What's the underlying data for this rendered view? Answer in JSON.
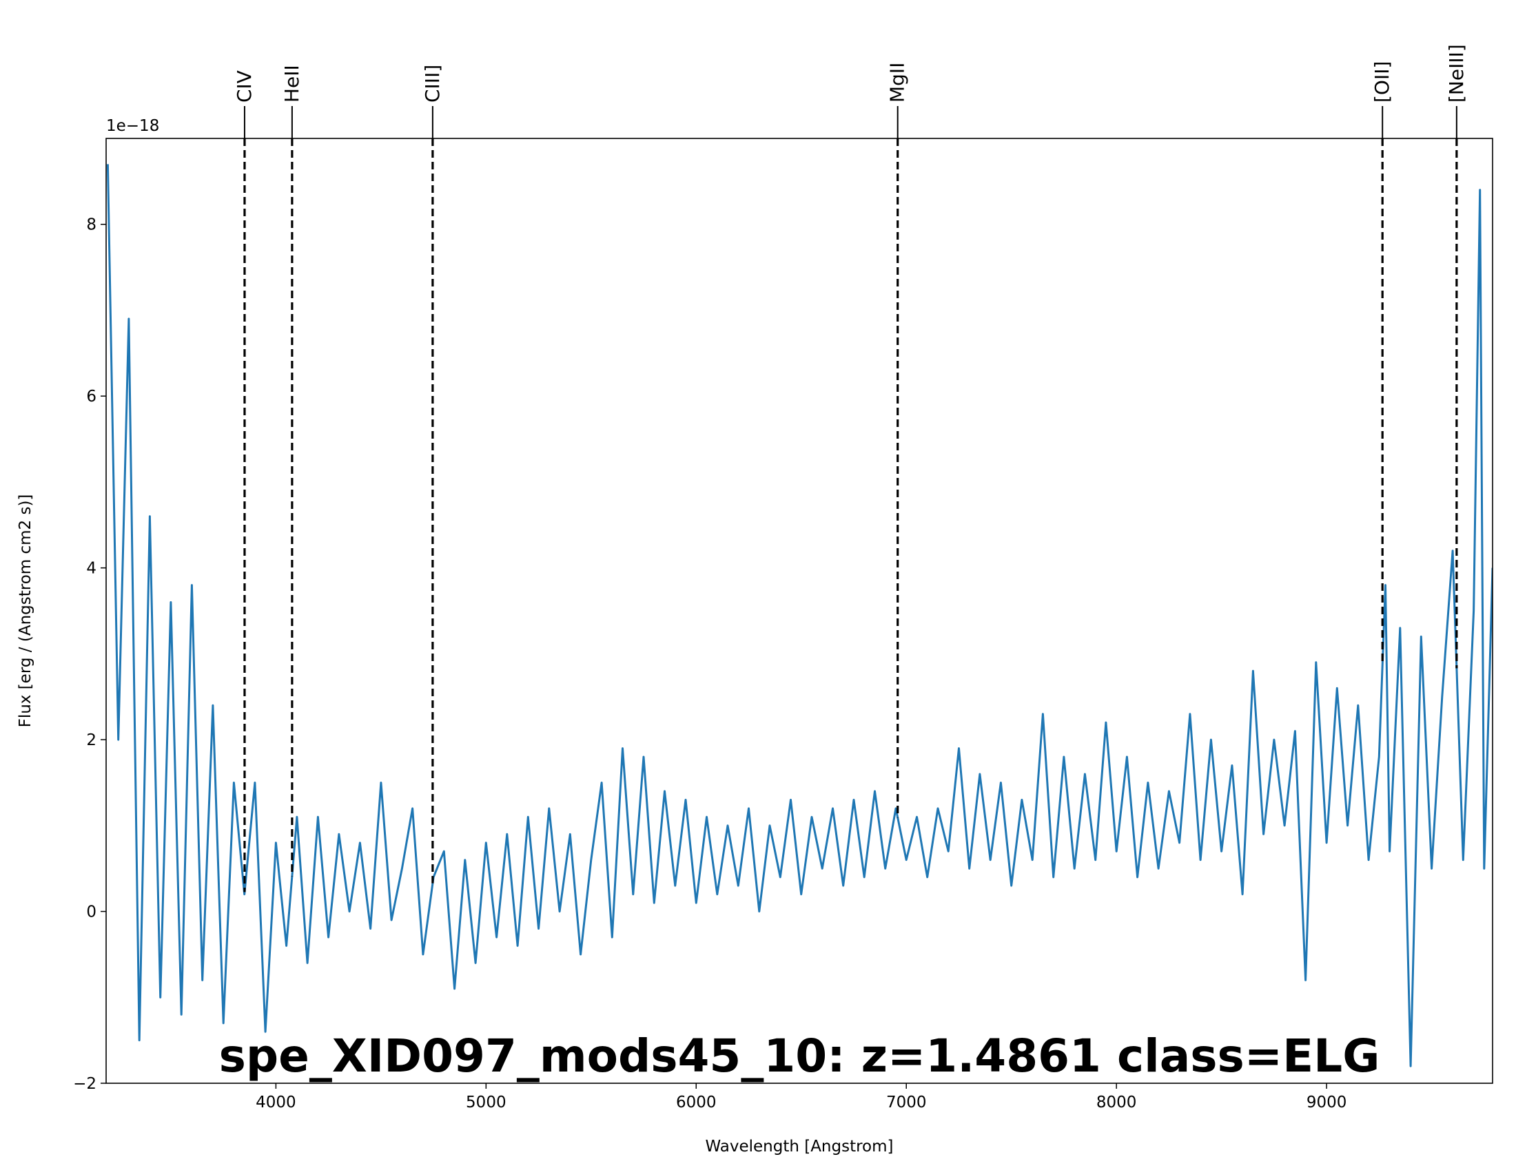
{
  "chart_data": {
    "type": "line",
    "title": "spe_XID097_mods45_10: z=1.4861 class=ELG",
    "x_label": "Wavelength [Angstrom]",
    "y_label": "Flux [erg / (Angstrom cm2 s)]",
    "y_offset_label": "1e−18",
    "xlim": [
      3192,
      9790
    ],
    "ylim": [
      -2,
      9
    ],
    "xticks": [
      4000,
      5000,
      6000,
      7000,
      8000,
      9000
    ],
    "yticks": [
      {
        "value": -2,
        "label": "−2"
      },
      0,
      2,
      4,
      6,
      8
    ],
    "series": [
      {
        "color": "#1f77b4",
        "x": [
          3200,
          3250,
          3300,
          3350,
          3400,
          3450,
          3500,
          3550,
          3600,
          3650,
          3700,
          3750,
          3800,
          3850,
          3900,
          3950,
          4000,
          4050,
          4100,
          4150,
          4200,
          4250,
          4300,
          4350,
          4400,
          4450,
          4500,
          4550,
          4600,
          4650,
          4700,
          4750,
          4800,
          4850,
          4900,
          4950,
          5000,
          5050,
          5100,
          5150,
          5200,
          5250,
          5300,
          5350,
          5400,
          5450,
          5500,
          5550,
          5600,
          5650,
          5700,
          5750,
          5800,
          5850,
          5900,
          5950,
          6000,
          6050,
          6100,
          6150,
          6200,
          6250,
          6300,
          6350,
          6400,
          6450,
          6500,
          6550,
          6600,
          6650,
          6700,
          6750,
          6800,
          6850,
          6900,
          6950,
          7000,
          7050,
          7100,
          7150,
          7200,
          7250,
          7300,
          7350,
          7400,
          7450,
          7500,
          7550,
          7600,
          7650,
          7700,
          7750,
          7800,
          7850,
          7900,
          7950,
          8000,
          8050,
          8100,
          8150,
          8200,
          8250,
          8300,
          8350,
          8400,
          8450,
          8500,
          8550,
          8600,
          8650,
          8700,
          8750,
          8800,
          8850,
          8900,
          8950,
          9000,
          9050,
          9100,
          9150,
          9200,
          9250,
          9280,
          9300,
          9350,
          9400,
          9450,
          9500,
          9550,
          9600,
          9650,
          9700,
          9730,
          9750,
          9790
        ],
        "values": [
          8.7,
          2.0,
          6.9,
          -1.5,
          4.6,
          -1.0,
          3.6,
          -1.2,
          3.8,
          -0.8,
          2.4,
          -1.3,
          1.5,
          0.2,
          1.5,
          -1.4,
          0.8,
          -0.4,
          1.1,
          -0.6,
          1.1,
          -0.3,
          0.9,
          0.0,
          0.8,
          -0.2,
          1.5,
          -0.1,
          0.5,
          1.2,
          -0.5,
          0.4,
          0.7,
          -0.9,
          0.6,
          -0.6,
          0.8,
          -0.3,
          0.9,
          -0.4,
          1.1,
          -0.2,
          1.2,
          0.0,
          0.9,
          -0.5,
          0.6,
          1.5,
          -0.3,
          1.9,
          0.2,
          1.8,
          0.1,
          1.4,
          0.3,
          1.3,
          0.1,
          1.1,
          0.2,
          1.0,
          0.3,
          1.2,
          0.0,
          1.0,
          0.4,
          1.3,
          0.2,
          1.1,
          0.5,
          1.2,
          0.3,
          1.3,
          0.4,
          1.4,
          0.5,
          1.2,
          0.6,
          1.1,
          0.4,
          1.2,
          0.7,
          1.9,
          0.5,
          1.6,
          0.6,
          1.5,
          0.3,
          1.3,
          0.6,
          2.3,
          0.4,
          1.8,
          0.5,
          1.6,
          0.6,
          2.2,
          0.7,
          1.8,
          0.4,
          1.5,
          0.5,
          1.4,
          0.8,
          2.3,
          0.6,
          2.0,
          0.7,
          1.7,
          0.2,
          2.8,
          0.9,
          2.0,
          1.0,
          2.1,
          -0.8,
          2.9,
          0.8,
          2.6,
          1.0,
          2.4,
          0.6,
          1.8,
          3.8,
          0.7,
          3.3,
          -1.8,
          3.2,
          0.5,
          2.5,
          4.2,
          0.6,
          3.5,
          8.4,
          0.5,
          4.0
        ]
      }
    ],
    "lines": [
      {
        "label": "CIV",
        "x": 3851
      },
      {
        "label": "HeII",
        "x": 4077
      },
      {
        "label": "CIII]",
        "x": 4746
      },
      {
        "label": "MgII",
        "x": 6959
      },
      {
        "label": "[OII]",
        "x": 9266
      },
      {
        "label": "[NeIII]",
        "x": 9619
      }
    ],
    "title_color": "#008b8b"
  }
}
